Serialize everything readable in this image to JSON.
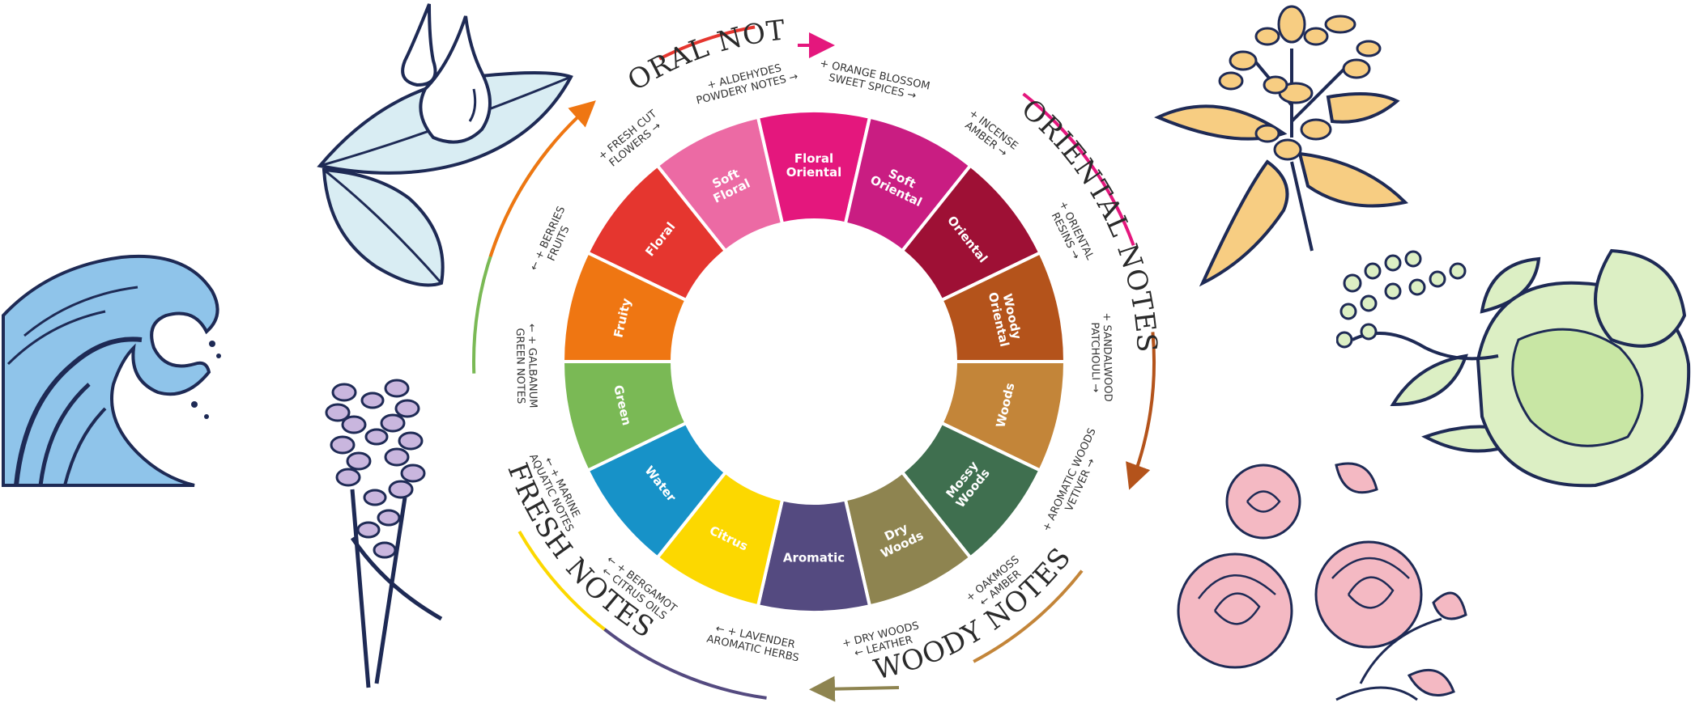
{
  "segments": [
    {
      "name": "Floral",
      "lines": [
        "Floral"
      ],
      "color": "#e5362f"
    },
    {
      "name": "Soft Floral",
      "lines": [
        "Soft",
        "Floral"
      ],
      "color": "#ec6aa4"
    },
    {
      "name": "Floral Oriental",
      "lines": [
        "Floral",
        "Oriental"
      ],
      "color": "#e4177d"
    },
    {
      "name": "Soft Oriental",
      "lines": [
        "Soft",
        "Oriental"
      ],
      "color": "#c91d82"
    },
    {
      "name": "Oriental",
      "lines": [
        "Oriental"
      ],
      "color": "#9e1035"
    },
    {
      "name": "Woody Oriental",
      "lines": [
        "Woody",
        "Oriental"
      ],
      "color": "#b4531b"
    },
    {
      "name": "Woods",
      "lines": [
        "Woods"
      ],
      "color": "#c38539"
    },
    {
      "name": "Mossy Woods",
      "lines": [
        "Mossy",
        "Woods"
      ],
      "color": "#3f6f4f"
    },
    {
      "name": "Dry Woods",
      "lines": [
        "Dry",
        "Woods"
      ],
      "color": "#8e8450"
    },
    {
      "name": "Aromatic",
      "lines": [
        "Aromatic"
      ],
      "color": "#544a80"
    },
    {
      "name": "Citrus",
      "lines": [
        "Citrus"
      ],
      "color": "#fcd800"
    },
    {
      "name": "Water",
      "lines": [
        "Water"
      ],
      "color": "#1792c8"
    },
    {
      "name": "Green",
      "lines": [
        "Green"
      ],
      "color": "#7ab955"
    },
    {
      "name": "Fruity",
      "lines": [
        "Fruity"
      ],
      "color": "#ef7612"
    }
  ],
  "families": [
    {
      "id": "floral",
      "title": "FLORAL NOTES"
    },
    {
      "id": "oriental",
      "title": "ORIENTAL NOTES"
    },
    {
      "id": "woody",
      "title": "WOODY NOTES"
    },
    {
      "id": "fresh",
      "title": "FRESH NOTES"
    }
  ],
  "notes": [
    {
      "id": "fresh-cut-flowers",
      "lines": [
        "+ FRESH CUT",
        "FLOWERS →"
      ]
    },
    {
      "id": "aldehydes",
      "lines": [
        "+ ALDEHYDES",
        "POWDERY NOTES →"
      ]
    },
    {
      "id": "orange-blossom",
      "lines": [
        "+ ORANGE BLOSSOM",
        "SWEET SPICES →"
      ]
    },
    {
      "id": "incense",
      "lines": [
        "+ INCENSE",
        "AMBER →"
      ]
    },
    {
      "id": "oriental-resins",
      "lines": [
        "+ ORIENTAL",
        "RESINS →"
      ]
    },
    {
      "id": "sandalwood",
      "lines": [
        "+ SANDALWOOD",
        "PATCHOULI →"
      ]
    },
    {
      "id": "aromatic-woods",
      "lines": [
        "+ AROMATIC WOODS",
        "VETIVER →"
      ]
    },
    {
      "id": "oakmoss",
      "lines": [
        "+ OAKMOSS",
        "← AMBER"
      ]
    },
    {
      "id": "dry-woods",
      "lines": [
        "+ DRY WOODS",
        "← LEATHER"
      ]
    },
    {
      "id": "lavender",
      "lines": [
        "← + LAVENDER",
        "AROMATIC HERBS"
      ]
    },
    {
      "id": "bergamot",
      "lines": [
        "← + BERGAMOT",
        "← CITRUS OILS"
      ]
    },
    {
      "id": "marine",
      "lines": [
        "← + MARINE",
        "AQUATIC NOTES"
      ]
    },
    {
      "id": "galbanum",
      "lines": [
        "← + GALBANUM",
        "GREEN NOTES"
      ]
    },
    {
      "id": "berries",
      "lines": [
        "← + BERRIES",
        "FRUITS"
      ]
    }
  ],
  "colors": {
    "outline": "#1e2a55",
    "wave": "#8fc4ea",
    "leaf": "#d9edf3",
    "lavender": "#c9b6de",
    "orange_flower": "#f7cd82",
    "bergamot": "#dcefc4",
    "rose": "#f4b9c3"
  },
  "illustrations": [
    {
      "id": "wave",
      "icon": "wave-icon"
    },
    {
      "id": "leaf-drops",
      "icon": "leaf-drops-icon"
    },
    {
      "id": "lavender",
      "icon": "lavender-icon"
    },
    {
      "id": "orange-blossom",
      "icon": "orange-blossom-icon"
    },
    {
      "id": "bergamot",
      "icon": "bergamot-icon"
    },
    {
      "id": "rose",
      "icon": "rose-icon"
    }
  ]
}
